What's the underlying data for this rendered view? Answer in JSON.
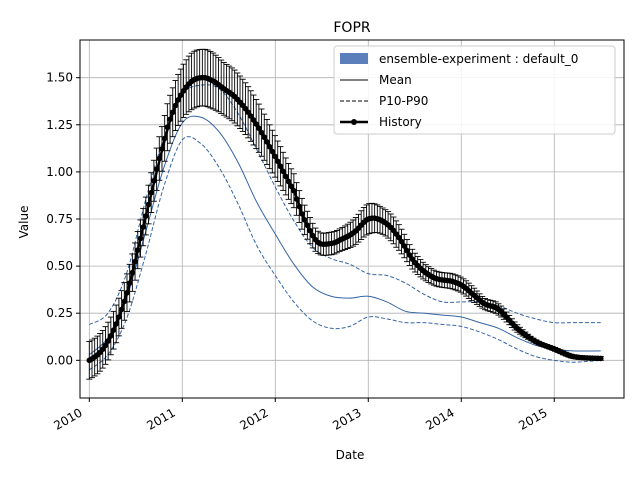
{
  "chart_data": {
    "type": "line",
    "title": "FOPR",
    "xlabel": "Date",
    "ylabel": "Value",
    "xlim": [
      2009.9,
      2015.75
    ],
    "ylim": [
      -0.2,
      1.7
    ],
    "grid": true,
    "legend_position": "top-right",
    "x_ticks": [
      2010,
      2011,
      2012,
      2013,
      2014,
      2015
    ],
    "x_tick_labels": [
      "2010",
      "2011",
      "2012",
      "2013",
      "2014",
      "2015"
    ],
    "y_ticks": [
      0.0,
      0.25,
      0.5,
      0.75,
      1.0,
      1.25,
      1.5
    ],
    "y_tick_labels": [
      "0.00",
      "0.25",
      "0.50",
      "0.75",
      "1.00",
      "1.25",
      "1.50"
    ],
    "legend": [
      {
        "label": "ensemble-experiment : default_0",
        "style": "patch"
      },
      {
        "label": "Mean",
        "style": "solid"
      },
      {
        "label": "P10-P90",
        "style": "dashed"
      },
      {
        "label": "History",
        "style": "marker-line"
      }
    ],
    "colors": {
      "ensemble": "#3465a4",
      "ensemble_patch": "#5b7fba",
      "history": "#000000",
      "grid": "#b0b0b0"
    },
    "series": [
      {
        "name": "Mean",
        "x": [
          2010.0,
          2010.2,
          2010.4,
          2010.6,
          2010.8,
          2011.0,
          2011.2,
          2011.4,
          2011.6,
          2011.8,
          2012.0,
          2012.2,
          2012.4,
          2012.6,
          2012.8,
          2013.0,
          2013.2,
          2013.4,
          2013.6,
          2013.8,
          2014.0,
          2014.2,
          2014.4,
          2014.6,
          2014.8,
          2015.0,
          2015.2,
          2015.5
        ],
        "y": [
          0.03,
          0.12,
          0.33,
          0.67,
          1.02,
          1.26,
          1.29,
          1.21,
          1.05,
          0.84,
          0.67,
          0.51,
          0.39,
          0.34,
          0.33,
          0.34,
          0.31,
          0.26,
          0.25,
          0.24,
          0.23,
          0.2,
          0.17,
          0.12,
          0.08,
          0.06,
          0.05,
          0.05
        ]
      },
      {
        "name": "P10",
        "x": [
          2010.0,
          2010.2,
          2010.4,
          2010.6,
          2010.8,
          2011.0,
          2011.2,
          2011.4,
          2011.6,
          2011.8,
          2012.0,
          2012.2,
          2012.4,
          2012.6,
          2012.8,
          2013.0,
          2013.2,
          2013.4,
          2013.6,
          2013.8,
          2014.0,
          2014.2,
          2014.4,
          2014.6,
          2014.8,
          2015.0,
          2015.2,
          2015.5
        ],
        "y": [
          -0.05,
          0.03,
          0.22,
          0.55,
          0.92,
          1.17,
          1.15,
          1.02,
          0.83,
          0.61,
          0.45,
          0.31,
          0.21,
          0.17,
          0.18,
          0.23,
          0.22,
          0.2,
          0.2,
          0.19,
          0.18,
          0.15,
          0.11,
          0.06,
          0.02,
          0.0,
          -0.01,
          0.0
        ]
      },
      {
        "name": "P90",
        "x": [
          2010.0,
          2010.2,
          2010.4,
          2010.6,
          2010.8,
          2011.0,
          2011.2,
          2011.4,
          2011.6,
          2011.8,
          2012.0,
          2012.2,
          2012.4,
          2012.6,
          2012.8,
          2013.0,
          2013.2,
          2013.4,
          2013.6,
          2013.8,
          2014.0,
          2014.2,
          2014.4,
          2014.6,
          2014.8,
          2015.0,
          2015.2,
          2015.5
        ],
        "y": [
          0.19,
          0.25,
          0.46,
          0.84,
          1.18,
          1.41,
          1.46,
          1.44,
          1.31,
          1.12,
          0.92,
          0.74,
          0.6,
          0.54,
          0.51,
          0.46,
          0.45,
          0.41,
          0.35,
          0.31,
          0.31,
          0.31,
          0.29,
          0.25,
          0.22,
          0.2,
          0.2,
          0.2
        ]
      },
      {
        "name": "History",
        "x": [
          2010.0,
          2010.2,
          2010.4,
          2010.6,
          2010.8,
          2010.9,
          2011.0,
          2011.1,
          2011.2,
          2011.3,
          2011.45,
          2011.6,
          2011.8,
          2012.0,
          2012.2,
          2012.3,
          2012.45,
          2012.6,
          2012.7,
          2012.85,
          2013.0,
          2013.15,
          2013.3,
          2013.5,
          2013.7,
          2013.9,
          2014.0,
          2014.1,
          2014.25,
          2014.4,
          2014.6,
          2014.8,
          2015.0,
          2015.2,
          2015.5
        ],
        "y": [
          0.0,
          0.1,
          0.35,
          0.75,
          1.15,
          1.32,
          1.42,
          1.48,
          1.5,
          1.49,
          1.44,
          1.38,
          1.25,
          1.08,
          0.9,
          0.76,
          0.63,
          0.62,
          0.64,
          0.68,
          0.75,
          0.74,
          0.67,
          0.52,
          0.44,
          0.42,
          0.4,
          0.36,
          0.3,
          0.27,
          0.17,
          0.1,
          0.06,
          0.02,
          0.01
        ],
        "error": [
          0.1,
          0.1,
          0.1,
          0.1,
          0.12,
          0.13,
          0.14,
          0.15,
          0.15,
          0.15,
          0.14,
          0.14,
          0.13,
          0.11,
          0.09,
          0.08,
          0.06,
          0.06,
          0.06,
          0.07,
          0.08,
          0.07,
          0.07,
          0.05,
          0.04,
          0.04,
          0.04,
          0.04,
          0.03,
          0.03,
          0.02,
          0.01,
          0.01,
          0.01,
          0.01
        ]
      }
    ]
  }
}
